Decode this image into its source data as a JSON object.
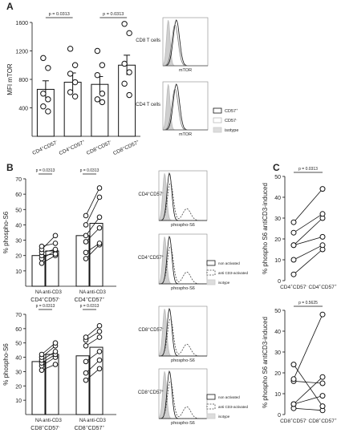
{
  "panels": {
    "a": "A",
    "b": "B",
    "c": "C"
  },
  "chart_data": [
    {
      "id": "A_bar",
      "type": "bar",
      "ylabel": "MFI mTOR",
      "ylim": [
        0,
        1600
      ],
      "yticks": [
        400,
        800,
        1200,
        1600
      ],
      "categories": [
        "CD4+CD57-",
        "CD4+CD57+",
        "CD8+CD57-",
        "CD8+CD57+"
      ],
      "cat_labels": [
        [
          "CD4",
          "+",
          "CD57",
          "-"
        ],
        [
          "CD4",
          "+",
          "CD57",
          "+"
        ],
        [
          "CD8",
          "+",
          "CD57",
          "-"
        ],
        [
          "CD8",
          "+",
          "CD57",
          "+"
        ]
      ],
      "values": [
        660,
        760,
        730,
        1000
      ],
      "errors": [
        120,
        130,
        110,
        140
      ],
      "points": [
        [
          1100,
          960,
          600,
          520,
          420,
          350
        ],
        [
          1230,
          1000,
          880,
          760,
          620,
          560
        ],
        [
          1200,
          1000,
          860,
          600,
          520,
          480
        ],
        [
          1580,
          1450,
          1020,
          900,
          740,
          580
        ]
      ],
      "pvalues": [
        {
          "from": 0,
          "to": 1,
          "text": "p = 0.0313"
        },
        {
          "from": 2,
          "to": 3,
          "text": "p = 0.0313"
        }
      ]
    },
    {
      "id": "B_cd4",
      "type": "bar",
      "ylabel": "% phospho-S6",
      "ylim": [
        0,
        70
      ],
      "yticks": [
        10,
        20,
        30,
        40,
        50,
        60,
        70
      ],
      "categories": [
        "NA",
        "anti-CD3",
        "NA",
        "anti-CD3"
      ],
      "tick_text": [
        "NA",
        "anti-CD3",
        "NA",
        "anti-CD3"
      ],
      "group_labels": [
        [
          "CD4",
          "+",
          "CD57",
          "-"
        ],
        [
          "CD4",
          "+",
          "CD57",
          "+"
        ]
      ],
      "values": [
        20,
        23,
        33,
        41
      ],
      "pairs": [
        [
          [
            15,
            20
          ],
          [
            18,
            23
          ],
          [
            20,
            21
          ],
          [
            22,
            24
          ],
          [
            24,
            33
          ],
          [
            26,
            28
          ]
        ],
        [
          [
            18,
            27
          ],
          [
            22,
            28
          ],
          [
            29,
            38
          ],
          [
            33,
            45
          ],
          [
            40,
            58
          ],
          [
            46,
            64
          ]
        ]
      ],
      "pvalues": [
        {
          "text": "p = 0.0313"
        },
        {
          "text": "p = 0.0313"
        }
      ]
    },
    {
      "id": "B_cd8",
      "type": "bar",
      "ylabel": "% phospho-S6",
      "ylim": [
        0,
        70
      ],
      "yticks": [
        10,
        20,
        30,
        40,
        50,
        60,
        70
      ],
      "categories": [
        "NA",
        "anti-CD3",
        "NA",
        "anti-CD3"
      ],
      "tick_text": [
        "NA",
        "anti-CD3",
        "NA",
        "anti-CD3"
      ],
      "group_labels": [
        [
          "CD8",
          "+",
          "CD57",
          "-"
        ],
        [
          "CD8",
          "+",
          "CD57",
          "+"
        ]
      ],
      "values": [
        37,
        42,
        41,
        47
      ],
      "pairs": [
        [
          [
            31,
            35
          ],
          [
            34,
            40
          ],
          [
            36,
            42
          ],
          [
            38,
            44
          ],
          [
            40,
            48
          ],
          [
            42,
            50
          ]
        ],
        [
          [
            24,
            32
          ],
          [
            29,
            38
          ],
          [
            37,
            44
          ],
          [
            48,
            54
          ],
          [
            52,
            58
          ],
          [
            54,
            62
          ]
        ]
      ],
      "pvalues": [
        {
          "text": "p = 0.0313"
        },
        {
          "text": "p = 0.0313"
        }
      ]
    },
    {
      "id": "C_cd4",
      "type": "scatter",
      "ylabel": "% phospho S6 antiCD3-induced",
      "ylim": [
        0,
        50
      ],
      "yticks": [
        0,
        10,
        20,
        30,
        40,
        50
      ],
      "group_labels": [
        [
          "CD4",
          "+",
          "CD57",
          "-"
        ],
        [
          "CD4",
          "+",
          "CD57",
          "+"
        ]
      ],
      "pairs": [
        [
          3,
          15
        ],
        [
          10,
          17
        ],
        [
          17,
          21
        ],
        [
          17,
          30
        ],
        [
          23,
          32
        ],
        [
          28,
          44
        ]
      ],
      "pvalue": "p = 0.0313"
    },
    {
      "id": "C_cd8",
      "type": "scatter",
      "ylabel": "% phospho S6 antiCD3-induced",
      "ylim": [
        0,
        50
      ],
      "yticks": [
        0,
        10,
        20,
        30,
        40,
        50
      ],
      "group_labels": [
        [
          "CD8",
          "+",
          "CD57",
          "-"
        ],
        [
          "CD8",
          "+",
          "CD57",
          "+"
        ]
      ],
      "pairs": [
        [
          3,
          2
        ],
        [
          5,
          9
        ],
        [
          5,
          18
        ],
        [
          16,
          15
        ],
        [
          17,
          48
        ],
        [
          24,
          4
        ]
      ],
      "pvalue": "p = 0.5625"
    }
  ],
  "histograms": {
    "a": [
      {
        "label": "CD8 T cells",
        "xlabel": "mTOR"
      },
      {
        "label": "CD4 T cells",
        "xlabel": "mTOR"
      }
    ],
    "a_legend": [
      "CD57",
      "CD57",
      "isotype"
    ],
    "a_legend_sup": [
      "+",
      "-",
      ""
    ],
    "b": [
      {
        "label": [
          "CD4",
          "+",
          "CD57",
          "-"
        ],
        "xlabel": "phospho-S6"
      },
      {
        "label": [
          "CD4",
          "+",
          "CD57",
          "+"
        ],
        "xlabel": "phospho-S6"
      },
      {
        "label": [
          "CD8",
          "+",
          "CD57",
          "-"
        ],
        "xlabel": "phospho-S6"
      },
      {
        "label": [
          "CD8",
          "+",
          "CD57",
          "+"
        ],
        "xlabel": "phospho-S6"
      }
    ],
    "b_legend": [
      "non activated",
      "anti CD3-activated",
      "isotype"
    ]
  }
}
